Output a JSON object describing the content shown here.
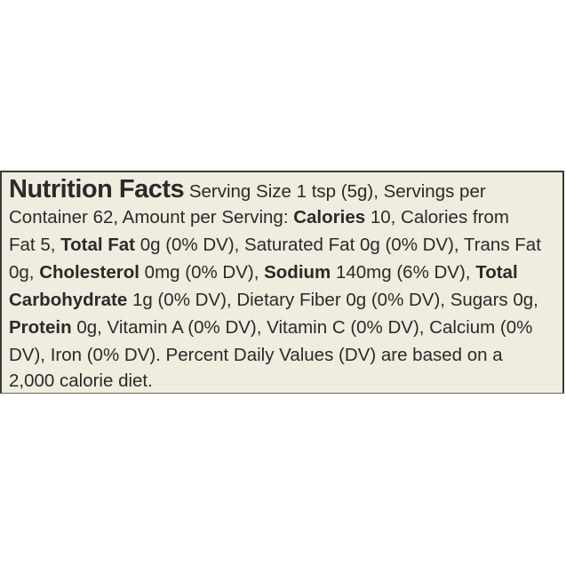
{
  "label": {
    "title": "Nutrition Facts",
    "lines": [
      [
        {
          "text": " Serving Size 1 tsp (5g), Servings per",
          "bold": false
        }
      ],
      [
        {
          "text": "Container 62, Amount per Serving: ",
          "bold": false
        },
        {
          "text": "Calories",
          "bold": true
        },
        {
          "text": " 10, Calories from",
          "bold": false
        }
      ],
      [
        {
          "text": "Fat 5, ",
          "bold": false
        },
        {
          "text": "Total Fat",
          "bold": true
        },
        {
          "text": " 0g (0% DV), Saturated Fat 0g (0% DV), Trans Fat",
          "bold": false
        }
      ],
      [
        {
          "text": "0g, ",
          "bold": false
        },
        {
          "text": "Cholesterol",
          "bold": true
        },
        {
          "text": " 0mg (0% DV), ",
          "bold": false
        },
        {
          "text": "Sodium",
          "bold": true
        },
        {
          "text": " 140mg (6% DV), ",
          "bold": false
        },
        {
          "text": "Total",
          "bold": true
        }
      ],
      [
        {
          "text": "Carbohydrate",
          "bold": true
        },
        {
          "text": " 1g (0% DV), Dietary Fiber 0g (0% DV), Sugars 0g,",
          "bold": false
        }
      ],
      [
        {
          "text": "Protein",
          "bold": true
        },
        {
          "text": " 0g, Vitamin A (0% DV), Vitamin C (0% DV), Calcium (0%",
          "bold": false
        }
      ],
      [
        {
          "text": "DV), Iron (0% DV). Percent Daily Values (DV) are based on a",
          "bold": false
        }
      ],
      [
        {
          "text": "2,000 calorie diet.",
          "bold": false
        }
      ]
    ]
  }
}
